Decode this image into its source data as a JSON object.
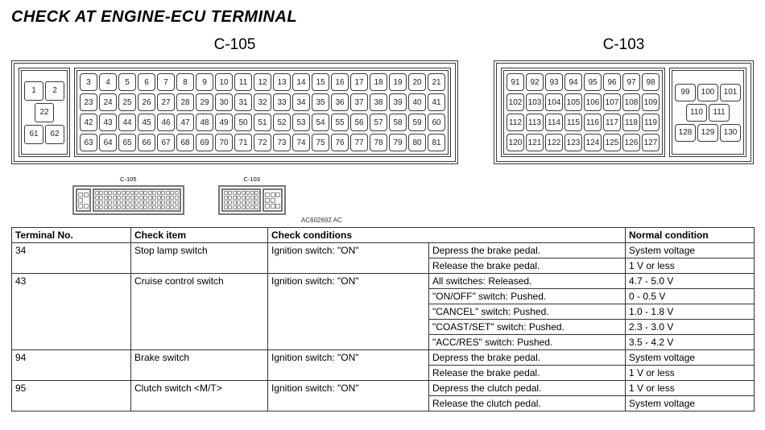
{
  "title": "CHECK AT ENGINE-ECU TERMINAL",
  "connectors": {
    "c105": {
      "label": "C-105",
      "left_block": [
        [
          1,
          2
        ],
        [
          22
        ],
        [
          61,
          62
        ]
      ],
      "right_block": [
        [
          3,
          4,
          5,
          6,
          7,
          8,
          9,
          10,
          11,
          12,
          13,
          14,
          15,
          16,
          17,
          18,
          19,
          20,
          21
        ],
        [
          23,
          24,
          25,
          26,
          27,
          28,
          29,
          30,
          31,
          32,
          33,
          34,
          35,
          36,
          37,
          38,
          39,
          40,
          41
        ],
        [
          42,
          43,
          44,
          45,
          46,
          47,
          48,
          49,
          50,
          51,
          52,
          53,
          54,
          55,
          56,
          57,
          58,
          59,
          60
        ],
        [
          63,
          64,
          65,
          66,
          67,
          68,
          69,
          70,
          71,
          72,
          73,
          74,
          75,
          76,
          77,
          78,
          79,
          80,
          81
        ]
      ]
    },
    "c103": {
      "label": "C-103",
      "left_block": [
        [
          91,
          92,
          93,
          94,
          95,
          96,
          97,
          98
        ],
        [
          102,
          103,
          104,
          105,
          106,
          107,
          108,
          109
        ],
        [
          112,
          113,
          114,
          115,
          116,
          117,
          118,
          119
        ],
        [
          120,
          121,
          122,
          123,
          124,
          125,
          126,
          127
        ]
      ],
      "right_block": [
        [
          99,
          100,
          101
        ],
        [
          110,
          111
        ],
        [
          128,
          129,
          130
        ]
      ]
    }
  },
  "ac_label": "AC602692 AC",
  "table": {
    "headers": [
      "Terminal No.",
      "Check item",
      "Check conditions",
      "Normal condition"
    ],
    "rows": [
      {
        "tn": "34",
        "item": "Stop lamp switch",
        "cond1": "Ignition switch: \"ON\"",
        "details": [
          {
            "c": "Depress the brake pedal.",
            "n": "System voltage"
          },
          {
            "c": "Release the brake pedal.",
            "n": "1 V or less"
          }
        ]
      },
      {
        "tn": "43",
        "item": "Cruise control switch",
        "cond1": "Ignition switch: \"ON\"",
        "details": [
          {
            "c": "All switches: Released.",
            "n": "4.7 - 5.0 V"
          },
          {
            "c": "\"ON/OFF\" switch: Pushed.",
            "n": "0 - 0.5 V"
          },
          {
            "c": "\"CANCEL\" switch: Pushed.",
            "n": "1.0 - 1.8 V"
          },
          {
            "c": "\"COAST/SET\" switch: Pushed.",
            "n": "2.3 - 3.0 V"
          },
          {
            "c": "\"ACC/RES\" switch: Pushed.",
            "n": "3.5 - 4.2 V"
          }
        ]
      },
      {
        "tn": "94",
        "item": "Brake switch",
        "cond1": "Ignition switch: \"ON\"",
        "details": [
          {
            "c": "Depress the brake pedal.",
            "n": "System voltage"
          },
          {
            "c": "Release the brake pedal.",
            "n": "1 V or less"
          }
        ]
      },
      {
        "tn": "95",
        "item": "Clutch switch <M/T>",
        "cond1": "Ignition switch: \"ON\"",
        "details": [
          {
            "c": "Depress the clutch pedal.",
            "n": "1 V or less"
          },
          {
            "c": "Release the clutch pedal.",
            "n": "System voltage"
          }
        ]
      }
    ]
  },
  "colors": {
    "border": "#333333",
    "text": "#000000",
    "bg": "#ffffff"
  }
}
